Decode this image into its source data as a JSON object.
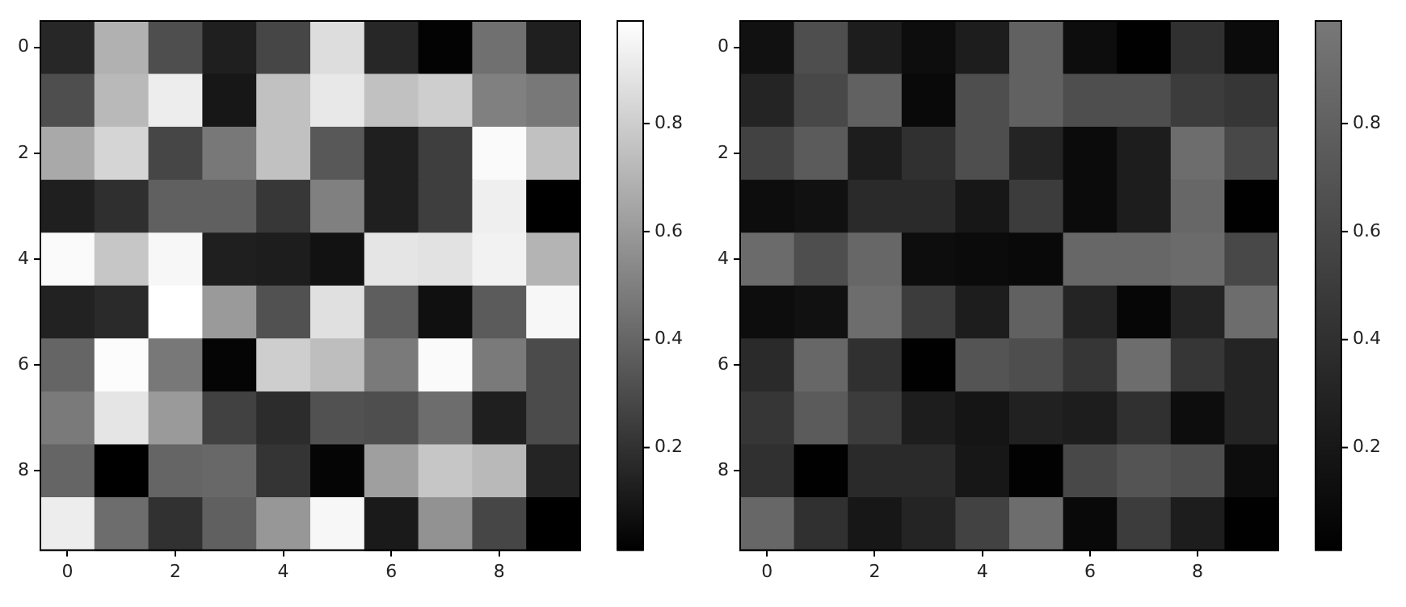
{
  "chart_data": [
    {
      "type": "heatmap",
      "color": "#ffffff",
      "xlim": [
        -0.5,
        9.5
      ],
      "xticks": [
        0,
        2,
        4,
        6,
        8
      ],
      "ylim": [
        9.5,
        -0.5
      ],
      "yticks": [
        0,
        2,
        4,
        6,
        8
      ],
      "clim": [
        0.01,
        0.99
      ],
      "cticks": [
        0.2,
        0.4,
        0.6,
        0.8
      ],
      "cells": [
        [
          0.16,
          0.69,
          0.31,
          0.13,
          0.28,
          0.86,
          0.16,
          0.02,
          0.44,
          0.13
        ],
        [
          0.31,
          0.72,
          0.92,
          0.1,
          0.75,
          0.9,
          0.75,
          0.8,
          0.5,
          0.47
        ],
        [
          0.66,
          0.83,
          0.28,
          0.47,
          0.75,
          0.35,
          0.13,
          0.25,
          0.97,
          0.75
        ],
        [
          0.13,
          0.19,
          0.38,
          0.38,
          0.22,
          0.5,
          0.13,
          0.25,
          0.93,
          0.01
        ],
        [
          0.97,
          0.77,
          0.96,
          0.13,
          0.12,
          0.08,
          0.89,
          0.88,
          0.94,
          0.7
        ],
        [
          0.14,
          0.17,
          0.99,
          0.6,
          0.32,
          0.87,
          0.37,
          0.07,
          0.36,
          0.96
        ],
        [
          0.4,
          0.98,
          0.47,
          0.03,
          0.8,
          0.74,
          0.48,
          0.97,
          0.48,
          0.3
        ],
        [
          0.48,
          0.89,
          0.6,
          0.26,
          0.18,
          0.32,
          0.31,
          0.43,
          0.13,
          0.3
        ],
        [
          0.4,
          0.01,
          0.4,
          0.41,
          0.21,
          0.03,
          0.62,
          0.77,
          0.72,
          0.15
        ],
        [
          0.92,
          0.43,
          0.2,
          0.38,
          0.59,
          0.96,
          0.11,
          0.57,
          0.28,
          0.01
        ]
      ]
    },
    {
      "type": "heatmap",
      "color": "#787878",
      "xlim": [
        -0.5,
        9.5
      ],
      "xticks": [
        0,
        2,
        4,
        6,
        8
      ],
      "ylim": [
        9.5,
        -0.5
      ],
      "yticks": [
        0,
        2,
        4,
        6,
        8
      ],
      "clim": [
        0.01,
        0.99
      ],
      "cticks": [
        0.2,
        0.4,
        0.6,
        0.8
      ],
      "cells": [
        [
          0.15,
          0.65,
          0.25,
          0.12,
          0.25,
          0.8,
          0.12,
          0.02,
          0.4,
          0.1
        ],
        [
          0.3,
          0.6,
          0.8,
          0.08,
          0.65,
          0.8,
          0.65,
          0.65,
          0.5,
          0.45
        ],
        [
          0.55,
          0.75,
          0.25,
          0.4,
          0.65,
          0.3,
          0.1,
          0.25,
          0.9,
          0.6
        ],
        [
          0.12,
          0.15,
          0.35,
          0.35,
          0.2,
          0.5,
          0.1,
          0.25,
          0.85,
          0.02
        ],
        [
          0.88,
          0.65,
          0.85,
          0.12,
          0.1,
          0.08,
          0.85,
          0.85,
          0.88,
          0.6
        ],
        [
          0.12,
          0.15,
          0.9,
          0.5,
          0.25,
          0.8,
          0.3,
          0.06,
          0.3,
          0.9
        ],
        [
          0.35,
          0.85,
          0.4,
          0.02,
          0.7,
          0.65,
          0.45,
          0.9,
          0.45,
          0.3
        ],
        [
          0.45,
          0.75,
          0.5,
          0.25,
          0.18,
          0.28,
          0.25,
          0.4,
          0.12,
          0.3
        ],
        [
          0.4,
          0.02,
          0.35,
          0.35,
          0.2,
          0.03,
          0.6,
          0.7,
          0.65,
          0.12
        ],
        [
          0.85,
          0.4,
          0.2,
          0.3,
          0.55,
          0.9,
          0.08,
          0.5,
          0.25,
          0.02
        ]
      ]
    }
  ]
}
